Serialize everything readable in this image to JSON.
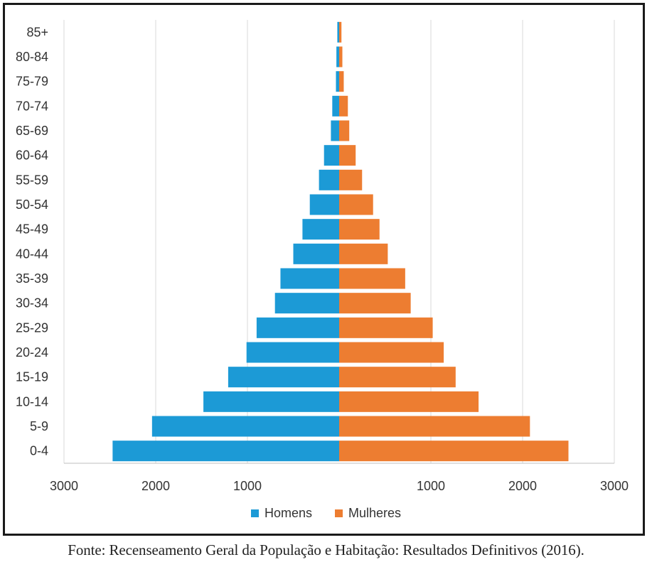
{
  "chart_data": {
    "type": "bar",
    "orientation": "horizontal",
    "subtype": "population-pyramid",
    "categories": [
      "0-4",
      "5-9",
      "10-14",
      "15-19",
      "20-24",
      "25-29",
      "30-34",
      "35-39",
      "40-44",
      "45-49",
      "50-54",
      "55-59",
      "60-64",
      "65-69",
      "70-74",
      "75-79",
      "80-84",
      "85+"
    ],
    "series": [
      {
        "name": "Homens",
        "color": "#1c9ad6",
        "values": [
          2470,
          2040,
          1480,
          1210,
          1010,
          900,
          700,
          640,
          500,
          400,
          320,
          220,
          165,
          90,
          75,
          35,
          30,
          20
        ]
      },
      {
        "name": "Mulheres",
        "color": "#ed7d31",
        "values": [
          2500,
          2080,
          1520,
          1270,
          1140,
          1020,
          780,
          720,
          530,
          440,
          370,
          250,
          180,
          110,
          95,
          50,
          35,
          25
        ]
      }
    ],
    "xlim": [
      -3000,
      3000
    ],
    "x_ticks": [
      {
        "value": -3000,
        "label": "3000"
      },
      {
        "value": -2000,
        "label": "2000"
      },
      {
        "value": -1000,
        "label": "1000"
      },
      {
        "value": 1000,
        "label": "1000"
      },
      {
        "value": 2000,
        "label": "2000"
      },
      {
        "value": 3000,
        "label": "3000"
      }
    ],
    "grid": "vertical",
    "legend_position": "bottom"
  },
  "legend": {
    "homens": "Homens",
    "mulheres": "Mulheres"
  },
  "caption": "Fonte: Recenseamento Geral da População e Habitação: Resultados Definitivos (2016)."
}
